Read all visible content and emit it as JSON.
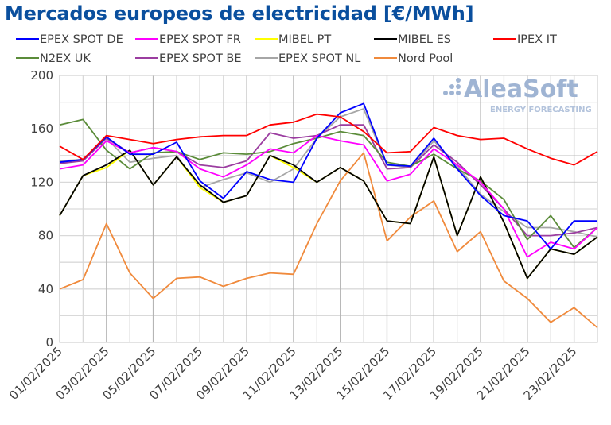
{
  "chart_data": {
    "type": "line",
    "title": "Mercados europeos de electricidad [€/MWh]",
    "xlabel": "",
    "ylabel": "",
    "ylim": [
      0,
      200
    ],
    "yticks": [
      "0",
      "40",
      "80",
      "120",
      "160",
      "200"
    ],
    "grid": true,
    "legend_position": "top",
    "x": [
      "01/02/2025",
      "02/02/2025",
      "03/02/2025",
      "04/02/2025",
      "05/02/2025",
      "06/02/2025",
      "07/02/2025",
      "08/02/2025",
      "09/02/2025",
      "10/02/2025",
      "11/02/2025",
      "12/02/2025",
      "13/02/2025",
      "14/02/2025",
      "15/02/2025",
      "16/02/2025",
      "17/02/2025",
      "18/02/2025",
      "19/02/2025",
      "20/02/2025",
      "21/02/2025",
      "22/02/2025",
      "23/02/2025",
      "24/02/2025"
    ],
    "xtick_labels": [
      "01/02/2025",
      "03/02/2025",
      "05/02/2025",
      "07/02/2025",
      "09/02/2025",
      "11/02/2025",
      "13/02/2025",
      "15/02/2025",
      "17/02/2025",
      "19/02/2025",
      "21/02/2025",
      "23/02/2025"
    ],
    "series": [
      {
        "name": "EPEX SPOT DE",
        "color": "#0000ff",
        "values": [
          135,
          137,
          154,
          141,
          141,
          150,
          121,
          108,
          128,
          122,
          120,
          153,
          172,
          179,
          133,
          132,
          153,
          130,
          110,
          95,
          91,
          70,
          91,
          91
        ]
      },
      {
        "name": "EPEX SPOT FR",
        "color": "#ff00ff",
        "values": [
          130,
          133,
          151,
          142,
          146,
          143,
          130,
          124,
          133,
          145,
          142,
          155,
          151,
          148,
          121,
          126,
          145,
          133,
          120,
          100,
          64,
          75,
          70,
          86
        ]
      },
      {
        "name": "MIBEL PT",
        "color": "#ffff00",
        "values": [
          95,
          125,
          131,
          144,
          118,
          139,
          116,
          105,
          110,
          140,
          131,
          120,
          131,
          121,
          91,
          89,
          139,
          80,
          124,
          90,
          48,
          70,
          66,
          79
        ]
      },
      {
        "name": "MIBEL ES",
        "color": "#000000",
        "values": [
          95,
          125,
          133,
          144,
          118,
          139,
          118,
          105,
          110,
          140,
          133,
          120,
          131,
          121,
          91,
          89,
          139,
          80,
          124,
          90,
          48,
          70,
          66,
          79
        ]
      },
      {
        "name": "IPEX IT",
        "color": "#ff0000",
        "values": [
          147,
          137,
          155,
          152,
          149,
          152,
          154,
          155,
          155,
          163,
          165,
          171,
          169,
          158,
          142,
          143,
          161,
          155,
          152,
          153,
          145,
          138,
          133,
          143
        ]
      },
      {
        "name": "N2EX UK",
        "color": "#5b8c3a",
        "values": [
          163,
          167,
          144,
          130,
          142,
          143,
          137,
          142,
          141,
          143,
          149,
          153,
          158,
          155,
          135,
          132,
          141,
          130,
          121,
          107,
          77,
          95,
          71,
          86
        ]
      },
      {
        "name": "EPEX SPOT BE",
        "color": "#9b3da0",
        "values": [
          134,
          136,
          153,
          142,
          146,
          143,
          133,
          131,
          136,
          157,
          153,
          155,
          163,
          163,
          130,
          131,
          148,
          135,
          118,
          100,
          80,
          80,
          82,
          86
        ]
      },
      {
        "name": "EPEX SPOT NL",
        "color": "#a6a6a6",
        "values": [
          136,
          137,
          153,
          135,
          138,
          140,
          116,
          122,
          127,
          120,
          130,
          153,
          169,
          175,
          133,
          131,
          151,
          132,
          111,
          98,
          86,
          86,
          83,
          79
        ]
      },
      {
        "name": "Nord Pool",
        "color": "#f08a3c",
        "values": [
          40,
          47,
          89,
          52,
          33,
          48,
          49,
          42,
          48,
          52,
          51,
          89,
          121,
          142,
          76,
          94,
          106,
          68,
          83,
          46,
          33,
          15,
          26,
          11
        ]
      }
    ]
  },
  "watermark": {
    "brand": "AleaSoft",
    "tagline": "ENERGY FORECASTING"
  }
}
